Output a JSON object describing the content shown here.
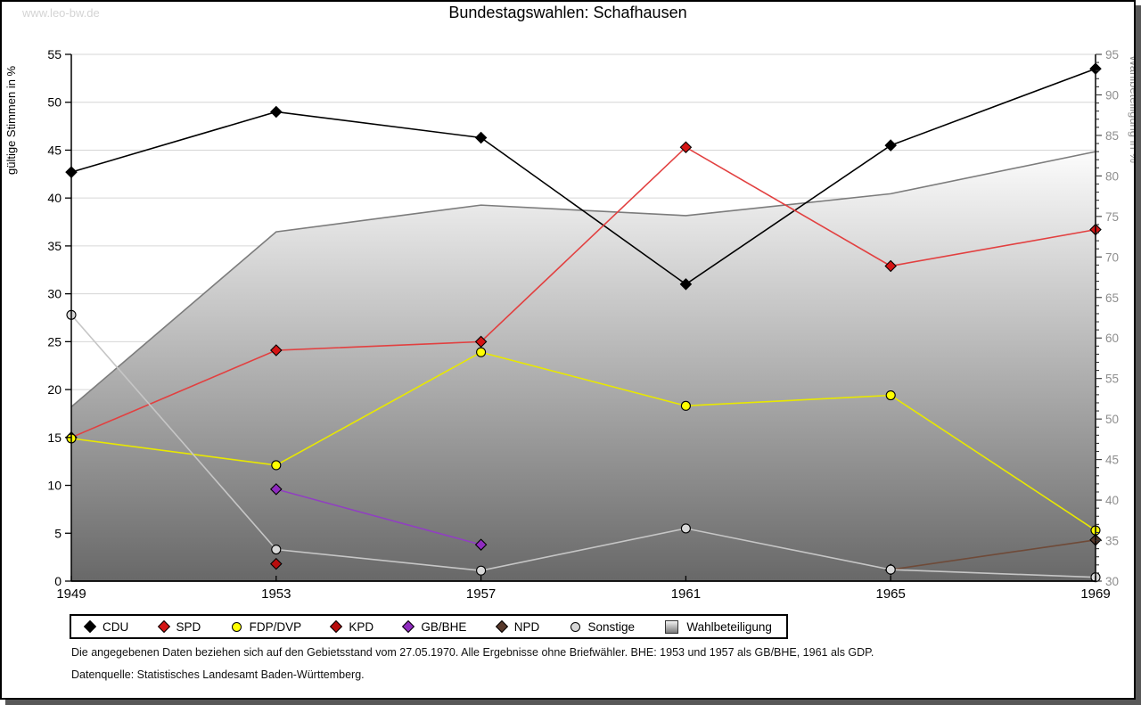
{
  "header": {
    "watermark": "www.leo-bw.de",
    "title": "Bundestagswahlen: Schafhausen"
  },
  "chart_data": {
    "type": "line",
    "title": "Bundestagswahlen: Schafhausen",
    "categories": [
      1949,
      1953,
      1957,
      1961,
      1965,
      1969
    ],
    "grid": true,
    "legend_position": "bottom",
    "left_axis": {
      "label": "gültige Stimmen in %",
      "min": 0,
      "max": 55,
      "step": 5
    },
    "right_axis": {
      "label": "Wahlbeteiligung in %",
      "min": 30,
      "max": 95,
      "step": 5,
      "minor_step": 1
    },
    "series": [
      {
        "name": "CDU",
        "axis": "left",
        "marker": "diamond",
        "color": "#000000",
        "marker_color": "#000000",
        "values": [
          42.7,
          49.0,
          46.3,
          31.0,
          45.5,
          53.5
        ]
      },
      {
        "name": "SPD",
        "axis": "left",
        "marker": "diamond",
        "color": "#e24040",
        "marker_color": "#d41414",
        "values": [
          15.0,
          24.1,
          25.0,
          45.3,
          32.9,
          36.7
        ]
      },
      {
        "name": "FDP/DVP",
        "axis": "left",
        "marker": "circle",
        "color": "#ededed00",
        "marker_color": "#ffff00",
        "line_color": "#e8e800",
        "values": [
          14.9,
          12.1,
          23.9,
          18.3,
          19.4,
          5.3
        ]
      },
      {
        "name": "KPD",
        "axis": "left",
        "marker": "diamond",
        "color": "#b80d0d",
        "marker_color": "#b80d0d",
        "values": [
          null,
          1.8,
          null,
          null,
          null,
          null
        ]
      },
      {
        "name": "GB/BHE",
        "axis": "left",
        "marker": "diamond",
        "color": "#9040c0",
        "marker_color": "#8f2bbf",
        "values": [
          null,
          9.6,
          3.8,
          null,
          null,
          null
        ]
      },
      {
        "name": "NPD",
        "axis": "left",
        "marker": "diamond",
        "color": "#6f4a38",
        "marker_color": "#57382a",
        "values": [
          null,
          null,
          null,
          null,
          1.2,
          4.3
        ]
      },
      {
        "name": "Sonstige",
        "axis": "left",
        "marker": "circle",
        "color": "#c6c6c6",
        "marker_color": "#d8d8d8",
        "values": [
          27.8,
          3.3,
          1.1,
          5.5,
          1.2,
          0.4
        ]
      },
      {
        "name": "Wahlbeteiligung",
        "axis": "right",
        "type": "area",
        "marker": "square",
        "edge_color": "#7c7c7c",
        "fill_top": "#fcfcfc",
        "fill_bottom": "#686868",
        "values": [
          51.5,
          73.1,
          76.4,
          75.1,
          77.8,
          83.0
        ]
      }
    ]
  },
  "footnotes": [
    "Die angegebenen Daten beziehen sich auf den Gebietsstand vom 27.05.1970. Alle Ergebnisse ohne Briefwähler. BHE: 1953 und 1957 als GB/BHE, 1961 als GDP.",
    "Datenquelle: Statistisches Landesamt Baden-Württemberg."
  ]
}
